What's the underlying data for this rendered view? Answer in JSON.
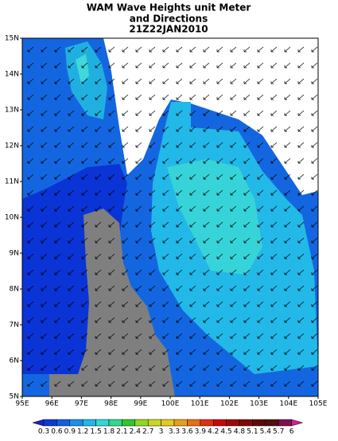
{
  "header": {
    "title": [
      "WAM Wave Heights unit Meter",
      "and Directions",
      "21Z22JAN2010"
    ]
  },
  "axes": {
    "x_labels": [
      "95E",
      "96E",
      "97E",
      "98E",
      "99E",
      "100E",
      "101E",
      "102E",
      "103E",
      "104E",
      "105E"
    ],
    "y_labels": [
      "5N",
      "6N",
      "7N",
      "8N",
      "9N",
      "10N",
      "11N",
      "12N",
      "13N",
      "14N",
      "15N"
    ]
  },
  "colorbar": {
    "labels": [
      "0.3",
      "0.6",
      "0.9",
      "1.2",
      "1.5",
      "1.8",
      "2.1",
      "2.4",
      "2.7",
      "3",
      "3.3",
      "3.6",
      "3.9",
      "4.2",
      "4.5",
      "4.8",
      "5.1",
      "5.4",
      "5.7",
      "6"
    ],
    "colors": [
      "#2020c8",
      "#0a3ad8",
      "#1060e6",
      "#1890ea",
      "#20b8e8",
      "#30d8d8",
      "#30d890",
      "#30c830",
      "#90d820",
      "#c8d820",
      "#e8c820",
      "#e8a018",
      "#e87010",
      "#e03010",
      "#c80808",
      "#a00808",
      "#800808",
      "#600808",
      "#501010",
      "#801050",
      "#d02090"
    ]
  }
}
